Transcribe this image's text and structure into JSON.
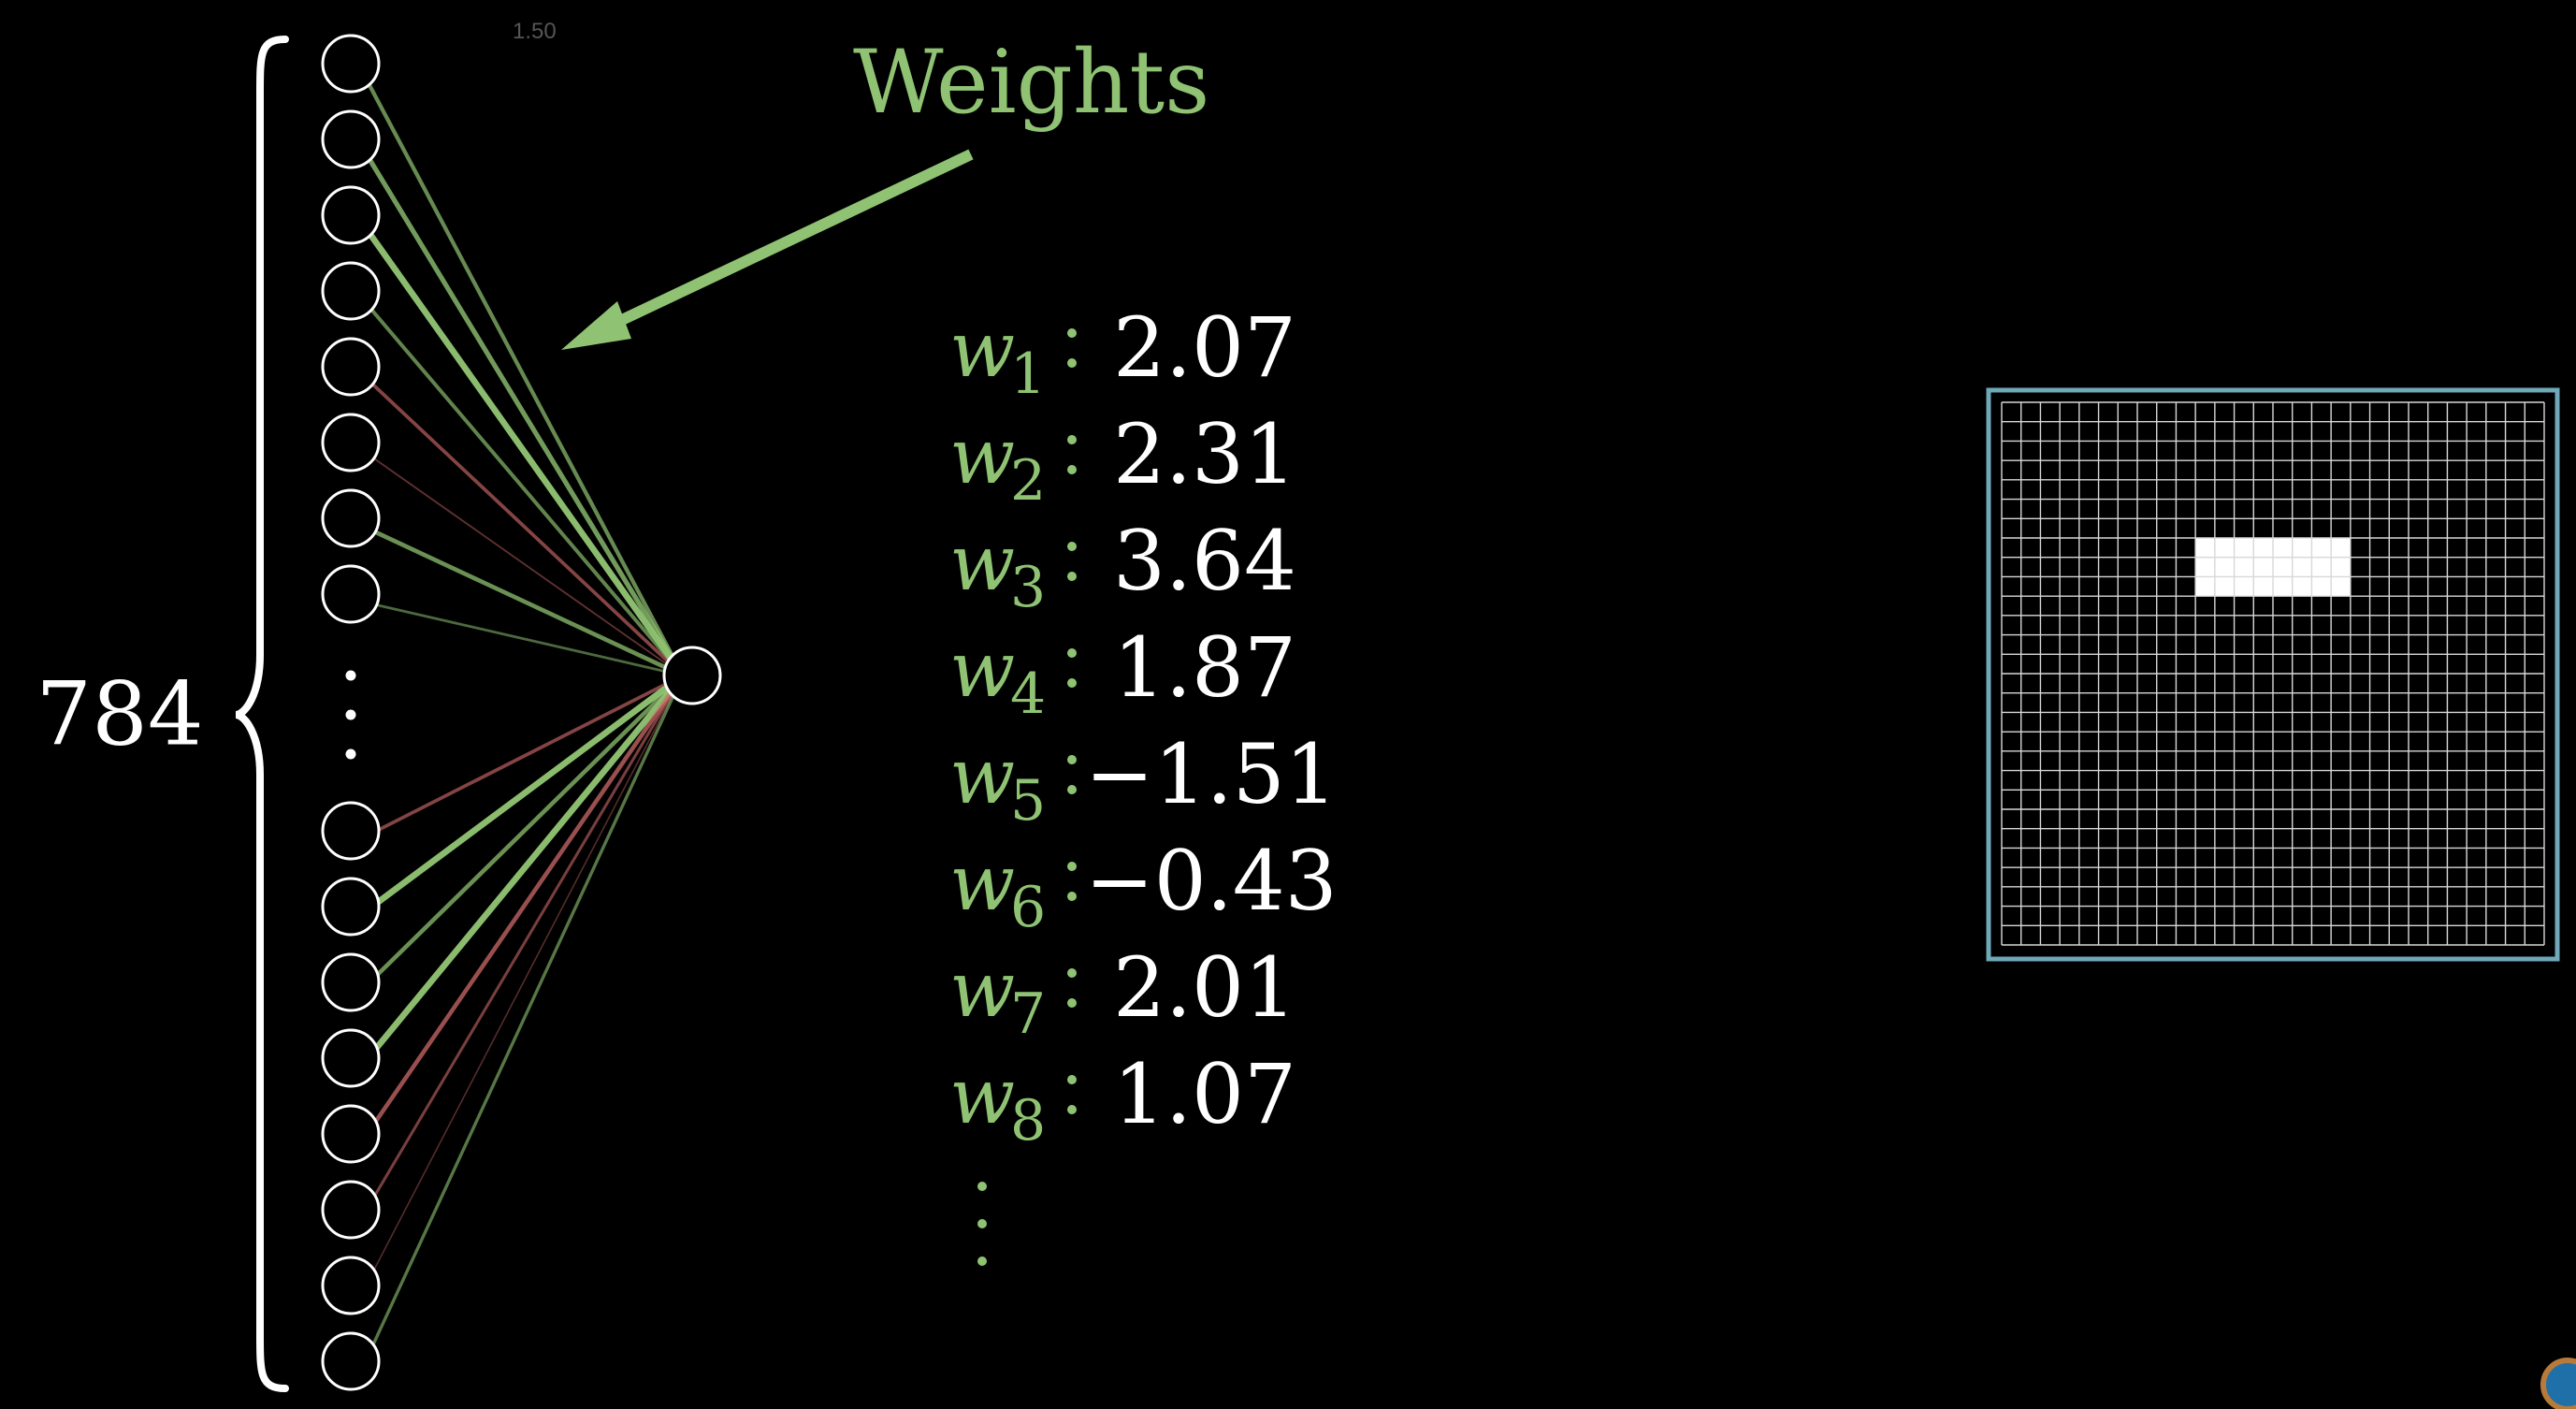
{
  "speed_label": "1.50",
  "annotation": {
    "label": "Weights",
    "color": "#8fc272"
  },
  "input_layer": {
    "count_label": "784",
    "top_neuron_count": 8,
    "bottom_neuron_count": 8,
    "has_ellipsis": true
  },
  "weights": [
    {
      "symbol": "w",
      "index": "1",
      "value": "2.07"
    },
    {
      "symbol": "w",
      "index": "2",
      "value": "2.31"
    },
    {
      "symbol": "w",
      "index": "3",
      "value": "3.64"
    },
    {
      "symbol": "w",
      "index": "4",
      "value": "1.87"
    },
    {
      "symbol": "w",
      "index": "5",
      "value": "−1.51"
    },
    {
      "symbol": "w",
      "index": "6",
      "value": "−0.43"
    },
    {
      "symbol": "w",
      "index": "7",
      "value": "2.01"
    },
    {
      "symbol": "w",
      "index": "8",
      "value": "1.07"
    }
  ],
  "connections": [
    {
      "sign": "positive",
      "strength": 0.55
    },
    {
      "sign": "positive",
      "strength": 0.7
    },
    {
      "sign": "positive",
      "strength": 0.95
    },
    {
      "sign": "positive",
      "strength": 0.5
    },
    {
      "sign": "negative",
      "strength": 0.45
    },
    {
      "sign": "negative",
      "strength": 0.15
    },
    {
      "sign": "positive",
      "strength": 0.6
    },
    {
      "sign": "positive",
      "strength": 0.3
    },
    {
      "sign": "negative",
      "strength": 0.45
    },
    {
      "sign": "positive",
      "strength": 0.95
    },
    {
      "sign": "positive",
      "strength": 0.6
    },
    {
      "sign": "positive",
      "strength": 0.95
    },
    {
      "sign": "negative",
      "strength": 0.6
    },
    {
      "sign": "negative",
      "strength": 0.35
    },
    {
      "sign": "negative",
      "strength": 0.1
    },
    {
      "sign": "positive",
      "strength": 0.4
    }
  ],
  "pixel_grid": {
    "rows": 28,
    "cols": 28,
    "border_color": "#6fa8b8",
    "lit_rows": [
      7,
      9
    ],
    "lit_cols": [
      10,
      17
    ]
  },
  "colors": {
    "positive": "#8fc272",
    "negative": "#d06a6a",
    "text": "#ffffff",
    "background": "#000000"
  }
}
